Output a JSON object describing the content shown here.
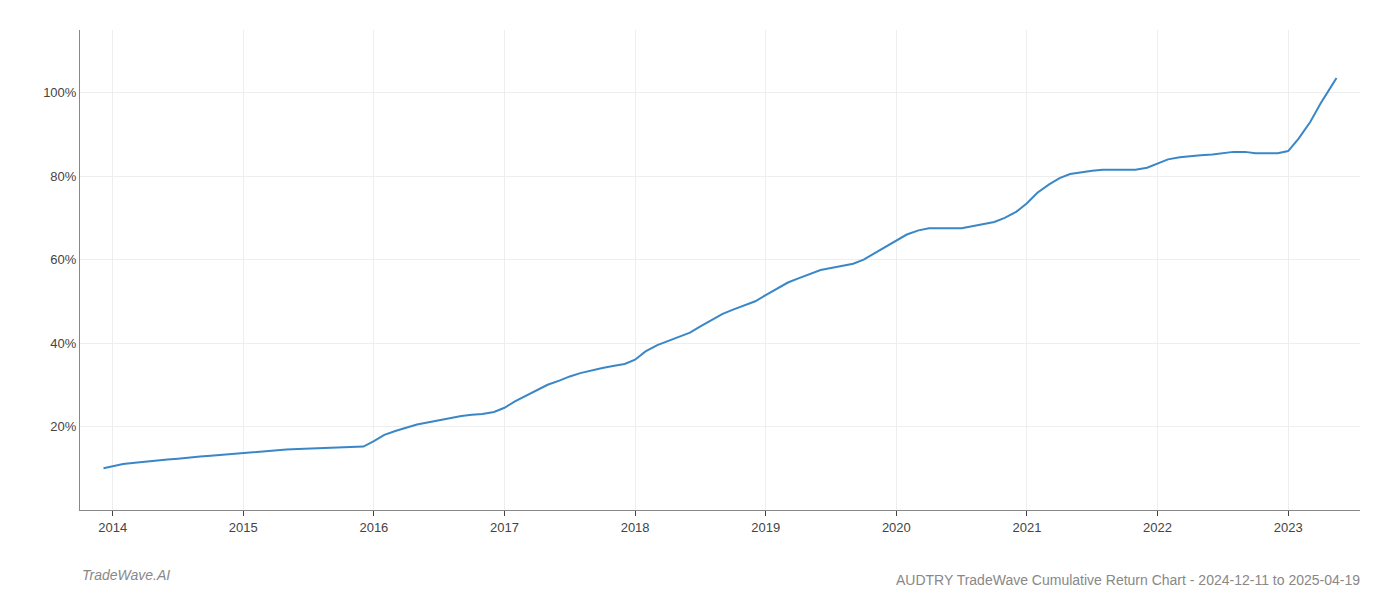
{
  "chart_data": {
    "type": "line",
    "title": "AUDTRY TradeWave Cumulative Return Chart - 2024-12-11 to 2025-04-19",
    "annotations": [
      "TradeWave.AI"
    ],
    "color": "#3a87c8",
    "grid": true,
    "xlim": [
      2013.75,
      2023.55
    ],
    "xticks": [
      2014,
      2015,
      2016,
      2017,
      2018,
      2019,
      2020,
      2021,
      2022,
      2023
    ],
    "ylim": [
      0,
      115
    ],
    "yticks": [
      {
        "value": 20,
        "label": "20%"
      },
      {
        "value": 40,
        "label": "40%"
      },
      {
        "value": 60,
        "label": "60%"
      },
      {
        "value": 80,
        "label": "80%"
      },
      {
        "value": 100,
        "label": "100%"
      }
    ],
    "x": [
      2013.93,
      2014.0,
      2014.08,
      2014.17,
      2014.25,
      2014.33,
      2014.42,
      2014.5,
      2014.58,
      2014.67,
      2014.75,
      2014.83,
      2014.92,
      2015.0,
      2015.08,
      2015.17,
      2015.25,
      2015.33,
      2015.42,
      2015.5,
      2015.58,
      2015.67,
      2015.75,
      2015.83,
      2015.92,
      2016.0,
      2016.08,
      2016.17,
      2016.25,
      2016.33,
      2016.42,
      2016.5,
      2016.58,
      2016.67,
      2016.75,
      2016.83,
      2016.92,
      2017.0,
      2017.08,
      2017.17,
      2017.25,
      2017.33,
      2017.42,
      2017.5,
      2017.58,
      2017.67,
      2017.75,
      2017.83,
      2017.92,
      2018.0,
      2018.08,
      2018.17,
      2018.25,
      2018.33,
      2018.42,
      2018.5,
      2018.58,
      2018.67,
      2018.75,
      2018.83,
      2018.92,
      2019.0,
      2019.08,
      2019.17,
      2019.25,
      2019.33,
      2019.42,
      2019.5,
      2019.58,
      2019.67,
      2019.75,
      2019.83,
      2019.92,
      2020.0,
      2020.08,
      2020.17,
      2020.25,
      2020.33,
      2020.42,
      2020.5,
      2020.58,
      2020.67,
      2020.75,
      2020.83,
      2020.92,
      2021.0,
      2021.08,
      2021.17,
      2021.25,
      2021.33,
      2021.42,
      2021.5,
      2021.58,
      2021.67,
      2021.75,
      2021.83,
      2021.92,
      2022.0,
      2022.08,
      2022.17,
      2022.25,
      2022.33,
      2022.42,
      2022.5,
      2022.58,
      2022.67,
      2022.75,
      2022.83,
      2022.92,
      2023.0,
      2023.08,
      2023.17,
      2023.25,
      2023.33,
      2023.37
    ],
    "values": [
      10.0,
      10.5,
      11.0,
      11.3,
      11.6,
      11.9,
      12.1,
      12.3,
      12.6,
      12.8,
      13.0,
      13.2,
      13.5,
      13.7,
      14.0,
      14.2,
      14.4,
      14.5,
      14.6,
      14.7,
      14.7,
      14.8,
      14.9,
      15.0,
      15.2,
      16.5,
      18.0,
      19.0,
      19.8,
      20.5,
      21.0,
      21.5,
      22.0,
      22.5,
      22.8,
      23.0,
      23.5,
      24.5,
      26.0,
      27.5,
      28.8,
      30.0,
      31.0,
      32.0,
      32.8,
      33.5,
      34.0,
      34.5,
      35.0,
      36.0,
      38.0,
      39.5,
      40.5,
      41.5,
      42.5,
      44.0,
      45.5,
      47.0,
      48.0,
      49.0,
      50.0,
      51.5,
      53.0,
      54.5,
      55.5,
      56.5,
      57.5,
      58.0,
      58.5,
      59.0,
      60.0,
      61.5,
      63.0,
      64.5,
      66.0,
      67.0,
      67.5,
      67.5,
      67.5,
      67.5,
      68.0,
      68.5,
      69.0,
      70.0,
      71.5,
      73.5,
      76.0,
      78.0,
      79.5,
      80.5,
      81.0,
      81.3,
      81.5,
      81.5,
      81.5,
      81.5,
      82.0,
      83.0,
      84.0,
      84.5,
      84.8,
      85.0,
      85.2,
      85.5,
      85.8,
      85.8,
      85.5,
      85.5,
      85.5,
      86.0,
      89.0,
      93.0,
      97.5,
      101.5,
      103.5
    ]
  }
}
